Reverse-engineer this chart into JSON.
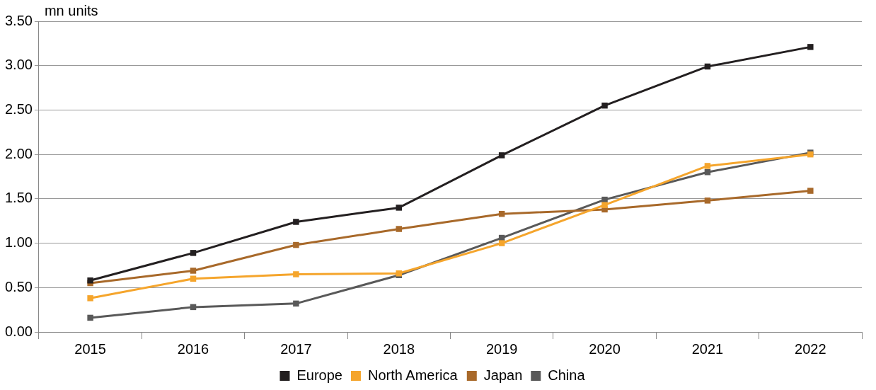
{
  "chart_data": {
    "type": "line",
    "ylabel": "mn units",
    "categories": [
      "2015",
      "2016",
      "2017",
      "2018",
      "2019",
      "2020",
      "2021",
      "2022"
    ],
    "series": [
      {
        "name": "Europe",
        "color": "#231f20",
        "values": [
          0.58,
          0.89,
          1.24,
          1.4,
          1.99,
          2.55,
          2.99,
          3.21
        ]
      },
      {
        "name": "North America",
        "color": "#f5a52c",
        "values": [
          0.38,
          0.6,
          0.65,
          0.66,
          1.0,
          1.43,
          1.87,
          2.0
        ]
      },
      {
        "name": "Japan",
        "color": "#a8692a",
        "values": [
          0.55,
          0.69,
          0.98,
          1.16,
          1.33,
          1.38,
          1.48,
          1.59
        ]
      },
      {
        "name": "China",
        "color": "#595959",
        "values": [
          0.16,
          0.28,
          0.32,
          0.64,
          1.06,
          1.49,
          1.8,
          2.02
        ]
      }
    ],
    "ylim": [
      0,
      3.5
    ],
    "yticks": [
      {
        "value": 0,
        "label": "0.00"
      },
      {
        "value": 0.5,
        "label": "0.50"
      },
      {
        "value": 1,
        "label": "1.00"
      },
      {
        "value": 1.5,
        "label": "1.50"
      },
      {
        "value": 2,
        "label": "2.00"
      },
      {
        "value": 2.5,
        "label": "2.50"
      },
      {
        "value": 3,
        "label": "3.00"
      },
      {
        "value": 3.5,
        "label": "3.50"
      }
    ],
    "grid": "y",
    "legend": "bottom",
    "marker": "square",
    "line_style": "solid"
  }
}
